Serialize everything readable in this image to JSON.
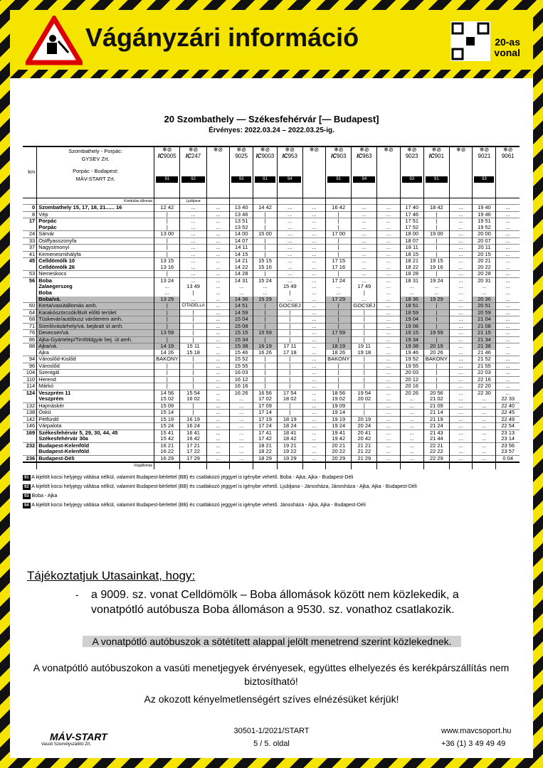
{
  "header": {
    "title": "Vágányzári információ",
    "line_label": "20-as vonal"
  },
  "route": {
    "title": "20 Szombathely — Székesfehérvár [— Budapest]",
    "validity": "Érvényes: 2022.03.24 – 2022.03.25-ig."
  },
  "timetable": {
    "km_label": "km",
    "operators": [
      "Szombathely - Porpác:",
      "GYSEV Zrt.",
      "Porpác - Budapest:",
      "MÁV-START Zrt."
    ],
    "start_label": "Kiindulási állomás",
    "end_label": "Végállomás",
    "trains": [
      {
        "ic": "IC",
        "number": "9005",
        "note": "91"
      },
      {
        "ic": "IC",
        "number": "247",
        "note": "92"
      },
      {
        "ic": "",
        "number": "",
        "note": ""
      },
      {
        "ic": "",
        "number": "9025",
        "note": "93"
      },
      {
        "ic": "IC",
        "number": "9003",
        "note": "91"
      },
      {
        "ic": "IC",
        "number": "953",
        "note": "94"
      },
      {
        "ic": "",
        "number": "",
        "note": ""
      },
      {
        "ic": "IC",
        "number": "903",
        "note": "91"
      },
      {
        "ic": "IC",
        "number": "963",
        "note": "94"
      },
      {
        "ic": "",
        "number": "",
        "note": ""
      },
      {
        "ic": "",
        "number": "9023",
        "note": "93"
      },
      {
        "ic": "IC",
        "number": "901",
        "note": "91"
      },
      {
        "ic": "",
        "number": "",
        "note": ""
      },
      {
        "ic": "",
        "number": "9021",
        "note": "93"
      },
      {
        "ic": "",
        "number": "9061",
        "note": ""
      }
    ],
    "origin": "Ljubljana",
    "rows": [
      {
        "km": "0",
        "station": "Szombathely 15, 17, 18, 21...... 16",
        "bold": true,
        "times": [
          "12 42",
          "...",
          "...",
          "13 40",
          "14 42",
          "...",
          "...",
          "16 42",
          "...",
          "...",
          "17 40",
          "18 42",
          "...",
          "19 40",
          "..."
        ]
      },
      {
        "km": "8",
        "station": "Vép",
        "times": [
          "|",
          "...",
          "...",
          "13 46",
          "|",
          "...",
          "...",
          "|",
          "...",
          "...",
          "17 46",
          "|",
          "...",
          "19 46",
          "..."
        ]
      },
      {
        "km": "17",
        "station": "Porpác",
        "bold": true,
        "times": [
          "|",
          "...",
          "...",
          "13 51",
          "|",
          "...",
          "...",
          "|",
          "...",
          "...",
          "17 51",
          "|",
          "...",
          "19 51",
          "..."
        ]
      },
      {
        "km": "",
        "station": "Porpác",
        "bold": true,
        "times": [
          "|",
          "...",
          "...",
          "13 52",
          "|",
          "...",
          "...",
          "|",
          "...",
          "...",
          "17 52",
          "|",
          "...",
          "19 52",
          "..."
        ]
      },
      {
        "km": "24",
        "station": "Sárvár",
        "times": [
          "13 00",
          "...",
          "...",
          "14 00",
          "15 00",
          "...",
          "...",
          "17 00",
          "...",
          "...",
          "18 00",
          "19 00",
          "...",
          "20 00",
          "..."
        ]
      },
      {
        "km": "33",
        "station": "Ostffyasszonyfa",
        "times": [
          "|",
          "...",
          "...",
          "14 07",
          "|",
          "...",
          "...",
          "|",
          "...",
          "...",
          "18 07",
          "|",
          "...",
          "20 07",
          "..."
        ]
      },
      {
        "km": "37",
        "station": "Nagysimonyi",
        "times": [
          "|",
          "...",
          "...",
          "14 11",
          "|",
          "...",
          "...",
          "|",
          "...",
          "...",
          "18 11",
          "|",
          "...",
          "20 11",
          "..."
        ]
      },
      {
        "km": "41",
        "station": "Kemenesmihályfa",
        "times": [
          "|",
          "...",
          "...",
          "14 15",
          "|",
          "...",
          "...",
          "|",
          "...",
          "...",
          "18 15",
          "|",
          "...",
          "20 15",
          "..."
        ]
      },
      {
        "km": "45",
        "station": "Celldömölk 10",
        "bold": true,
        "times": [
          "13 15",
          "...",
          "...",
          "14 21",
          "15 15",
          "...",
          "...",
          "17 15",
          "...",
          "...",
          "18 21",
          "19 15",
          "...",
          "20 21",
          "..."
        ]
      },
      {
        "km": "",
        "station": "Celldömölk 26",
        "bold": true,
        "times": [
          "13 16",
          "...",
          "...",
          "14 22",
          "15 16",
          "...",
          "...",
          "17 16",
          "...",
          "...",
          "18 22",
          "19 16",
          "...",
          "20 22",
          "..."
        ]
      },
      {
        "km": "53",
        "station": "Nemeskocs",
        "times": [
          "|",
          "...",
          "...",
          "14 28",
          "|",
          "...",
          "...",
          "|",
          "...",
          "...",
          "18 28",
          "|",
          "...",
          "20 28",
          "..."
        ]
      },
      {
        "km": "56",
        "station": "Boba",
        "bold": true,
        "times": [
          "13 24",
          "...",
          "...",
          "14 31",
          "15 24",
          "...",
          "...",
          "17 24",
          "...",
          "...",
          "18 31",
          "19 24",
          "...",
          "20 31",
          "..."
        ]
      },
      {
        "km": "",
        "station": "Zalaegerszeg",
        "bold": true,
        "times": [
          "...",
          "13 49",
          "...",
          "...",
          "...",
          "15 49",
          "...",
          "...",
          "17 49",
          "...",
          "...",
          "...",
          "...",
          "...",
          "..."
        ]
      },
      {
        "km": "",
        "station": "Boba",
        "bold": true,
        "times": [
          "...",
          "|",
          "...",
          "...",
          "...",
          "|",
          "...",
          "...",
          "|",
          "...",
          "...",
          "...",
          "...",
          "...",
          "..."
        ]
      },
      {
        "km": "",
        "station": "Boba/vá.",
        "bold": true,
        "bus": true,
        "times": [
          "13 29",
          "...",
          "...",
          "14 36",
          "15 29",
          "...",
          "...",
          "17 29",
          "...",
          "...",
          "18 36",
          "19 29",
          "...",
          "20 36",
          "..."
        ]
      },
      {
        "km": "60",
        "station": "Kerta/vasútállomás amh.",
        "bus": true,
        "times": [
          "|",
          "CITADELLA",
          "...",
          "14 51",
          "|",
          "GOCSEJ",
          "...",
          "|",
          "GOCSEJ",
          "...",
          "18 51",
          "|",
          "...",
          "20 51",
          "..."
        ]
      },
      {
        "km": "64",
        "station": "Karakószörcsök/Bolt előtti terület",
        "bus": true,
        "times": [
          "|",
          "|",
          "...",
          "14 59",
          "|",
          "|",
          "...",
          "|",
          "|",
          "...",
          "18 59",
          "|",
          "...",
          "20 59",
          "..."
        ]
      },
      {
        "km": "68",
        "station": "Tüskevár/autóbusz váróterem amh.",
        "bus": true,
        "times": [
          "|",
          "|",
          "...",
          "15 04",
          "|",
          "|",
          "...",
          "|",
          "|",
          "...",
          "19 04",
          "|",
          "...",
          "21 04",
          "..."
        ]
      },
      {
        "km": "71",
        "station": "Somlóvásárhely/vá. bejárati út amh.",
        "bus": true,
        "times": [
          "|",
          "|",
          "...",
          "15 08",
          "|",
          "|",
          "...",
          "|",
          "|",
          "...",
          "19 08",
          "|",
          "...",
          "21 08",
          "..."
        ]
      },
      {
        "km": "76",
        "station": "Devecser/vá.",
        "bus": true,
        "times": [
          "13 59",
          "|",
          "...",
          "15 15",
          "15 59",
          "|",
          "...",
          "17 59",
          "|",
          "...",
          "19 15",
          "19 59",
          "...",
          "21 15",
          "..."
        ]
      },
      {
        "km": "86",
        "station": "Ajka-Gyártelep/Timföldgyár bej. út amh.",
        "bus": true,
        "times": [
          "|",
          "|",
          "...",
          "15 34",
          "|",
          "|",
          "...",
          "|",
          "|",
          "...",
          "19 34",
          "|",
          "...",
          "21 34",
          "..."
        ]
      },
      {
        "km": "88",
        "station": "Ajka/vá.",
        "bus": true,
        "times": [
          "14 19",
          "15 11",
          "...",
          "15 38",
          "16 19",
          "17 11",
          "...",
          "18 19",
          "19 11",
          "...",
          "19 38",
          "20 19",
          "...",
          "21 38",
          "..."
        ]
      },
      {
        "km": "",
        "station": "Ajka",
        "times": [
          "14 26",
          "15 18",
          "...",
          "15 46",
          "16 26",
          "17 18",
          "...",
          "18 26",
          "19 18",
          "...",
          "19 46",
          "20 26",
          "...",
          "21 46",
          "..."
        ]
      },
      {
        "km": "94",
        "station": "Városlőd-Kislőd",
        "times": [
          "BAKONY",
          "|",
          "...",
          "15 52",
          "|",
          "|",
          "...",
          "BAKONY",
          "|",
          "...",
          "19 52",
          "BAKONY",
          "...",
          "21 52",
          "..."
        ]
      },
      {
        "km": "96",
        "station": "Városlőd",
        "times": [
          "|",
          "|",
          "...",
          "15 55",
          "|",
          "|",
          "...",
          "|",
          "|",
          "...",
          "19 55",
          "|",
          "...",
          "21 55",
          "..."
        ]
      },
      {
        "km": "104",
        "station": "Szentgál",
        "times": [
          "|",
          "|",
          "...",
          "16 03",
          "|",
          "|",
          "...",
          "|",
          "|",
          "...",
          "20 03",
          "|",
          "...",
          "22 03",
          "..."
        ]
      },
      {
        "km": "110",
        "station": "Herend",
        "times": [
          "|",
          "|",
          "...",
          "16 12",
          "|",
          "|",
          "...",
          "|",
          "|",
          "...",
          "20 12",
          "|",
          "...",
          "22 16",
          "..."
        ]
      },
      {
        "km": "114",
        "station": "Márkó",
        "times": [
          "|",
          "|",
          "...",
          "16 16",
          "|",
          "|",
          "...",
          "|",
          "|",
          "...",
          "20 16",
          "|",
          "...",
          "22 20",
          "..."
        ]
      },
      {
        "km": "124",
        "station": "Veszprém 11",
        "bold": true,
        "times": [
          "14 56",
          "15 54",
          "...",
          "16 26",
          "16 56",
          "17 54",
          "...",
          "18 56",
          "19 54",
          "...",
          "20 26",
          "20 56",
          "...",
          "22 30",
          "..."
        ]
      },
      {
        "km": "",
        "station": "Veszprém",
        "bold": true,
        "times": [
          "15 02",
          "16 02",
          "...",
          "...",
          "17 02",
          "18 02",
          "...",
          "19 02",
          "20 02",
          "...",
          "...",
          "21 02",
          "...",
          "...",
          "22 33"
        ]
      },
      {
        "km": "132",
        "station": "Hajmáskér",
        "times": [
          "15 09",
          "|",
          "...",
          "...",
          "17 09",
          "|",
          "...",
          "19 09",
          "|",
          "...",
          "...",
          "21 09",
          "...",
          "...",
          "22 40"
        ]
      },
      {
        "km": "138",
        "station": "Öskü",
        "times": [
          "15 14",
          "|",
          "...",
          "...",
          "17 14",
          "|",
          "...",
          "19 14",
          "|",
          "...",
          "...",
          "21 14",
          "...",
          "...",
          "22 45"
        ]
      },
      {
        "km": "142",
        "station": "Pétfürdő",
        "times": [
          "15 19",
          "16 19",
          "...",
          "...",
          "17 19",
          "18 19",
          "...",
          "19 19",
          "20 19",
          "...",
          "...",
          "21 19",
          "...",
          "...",
          "22 49"
        ]
      },
      {
        "km": "146",
        "station": "Várpalota",
        "times": [
          "15 24",
          "16 24",
          "...",
          "...",
          "17 24",
          "18 24",
          "...",
          "19 24",
          "20 24",
          "...",
          "...",
          "21 24",
          "...",
          "...",
          "22 54"
        ]
      },
      {
        "km": "169",
        "station": "Székesfehérvár 5, 29, 30, 44, 45",
        "bold": true,
        "times": [
          "15 41",
          "16 41",
          "...",
          "...",
          "17 41",
          "18 41",
          "...",
          "19 41",
          "20 41",
          "...",
          "...",
          "21 43",
          "...",
          "...",
          "23 13"
        ]
      },
      {
        "km": "",
        "station": "Székesfehérvár 30a",
        "bold": true,
        "times": [
          "15 42",
          "16 42",
          "...",
          "...",
          "17 42",
          "18 42",
          "...",
          "19 42",
          "20 42",
          "...",
          "...",
          "21 44",
          "...",
          "...",
          "23 14"
        ]
      },
      {
        "km": "232",
        "station": "Budapest-Kelenföld",
        "bold": true,
        "times": [
          "16 21",
          "17 21",
          "...",
          "...",
          "18 21",
          "19 21",
          "...",
          "20 21",
          "21 21",
          "...",
          "...",
          "22 21",
          "...",
          "...",
          "23 56"
        ]
      },
      {
        "km": "",
        "station": "Budapest-Kelenföld",
        "bold": true,
        "times": [
          "16 22",
          "17 22",
          "...",
          "...",
          "18 22",
          "19 22",
          "...",
          "20 22",
          "21 22",
          "...",
          "...",
          "22 22",
          "...",
          "...",
          "23 57"
        ]
      },
      {
        "km": "236",
        "station": "Budapest-Déli",
        "bold": true,
        "times": [
          "16 29",
          "17 29",
          "...",
          "...",
          "18 29",
          "19 29",
          "...",
          "20 29",
          "21 29",
          "...",
          "...",
          "22 29",
          "...",
          "...",
          "0 04"
        ]
      }
    ]
  },
  "footnotes": [
    {
      "code": "91",
      "text": "A kijelölt kocsi helyjegy váltása nélkül, valamint Budapest-bérlettel (BB) és csatlakozó jeggyel is igénybe vehető. Boba - Ajka, Ajka - Budapest-Déli"
    },
    {
      "code": "92",
      "text": "A kijelölt kocsi helyjegy váltása nélkül, valamint Budapest-bérlettel (BB) és csatlakozó jeggyel is igénybe vehető. Ljubljana - Jánosháza, Jánosháza - Ajka, Ajka - Budapest-Déli"
    },
    {
      "code": "93",
      "text": "Boba - Ajka"
    },
    {
      "code": "94",
      "text": "A kijelölt kocsi helyjegy váltása nélkül, valamint Budapest-bérlettel (BB) és csatlakozó jeggyel is igénybe vehető. Jánosháza - Ajka, Ajka - Budapest-Déli"
    }
  ],
  "notice": {
    "heading": "Tájékoztatjuk Utasainkat, hogy:",
    "bullet": "a 9009. sz. vonat Celldömölk – Boba állomások között nem közlekedik, a vonatpótló autóbusza Boba állomáson a 9530. sz. vonathoz csatlakozik.",
    "highlight": "A vonatpótló autóbuszok a sötétített alappal jelölt menetrend szerint közlekednek.",
    "info": "A vonatpótló autóbuszokon a vasúti menetjegyek érvényesek, együttes elhelyezés és kerékpárszállítás nem biztosítható!",
    "apology": "Az okozott kényelmetlenségért szíves elnézésüket kérjük!"
  },
  "footer": {
    "logo": "MÁV-START",
    "logo_sub": "Vasúti Személyszállító Zrt.",
    "doc_id": "30501-1/2021/START",
    "page": "5 / 5. oldal",
    "web": "www.mavcsoport.hu",
    "phone": "+36 (1) 3 49 49 49"
  }
}
